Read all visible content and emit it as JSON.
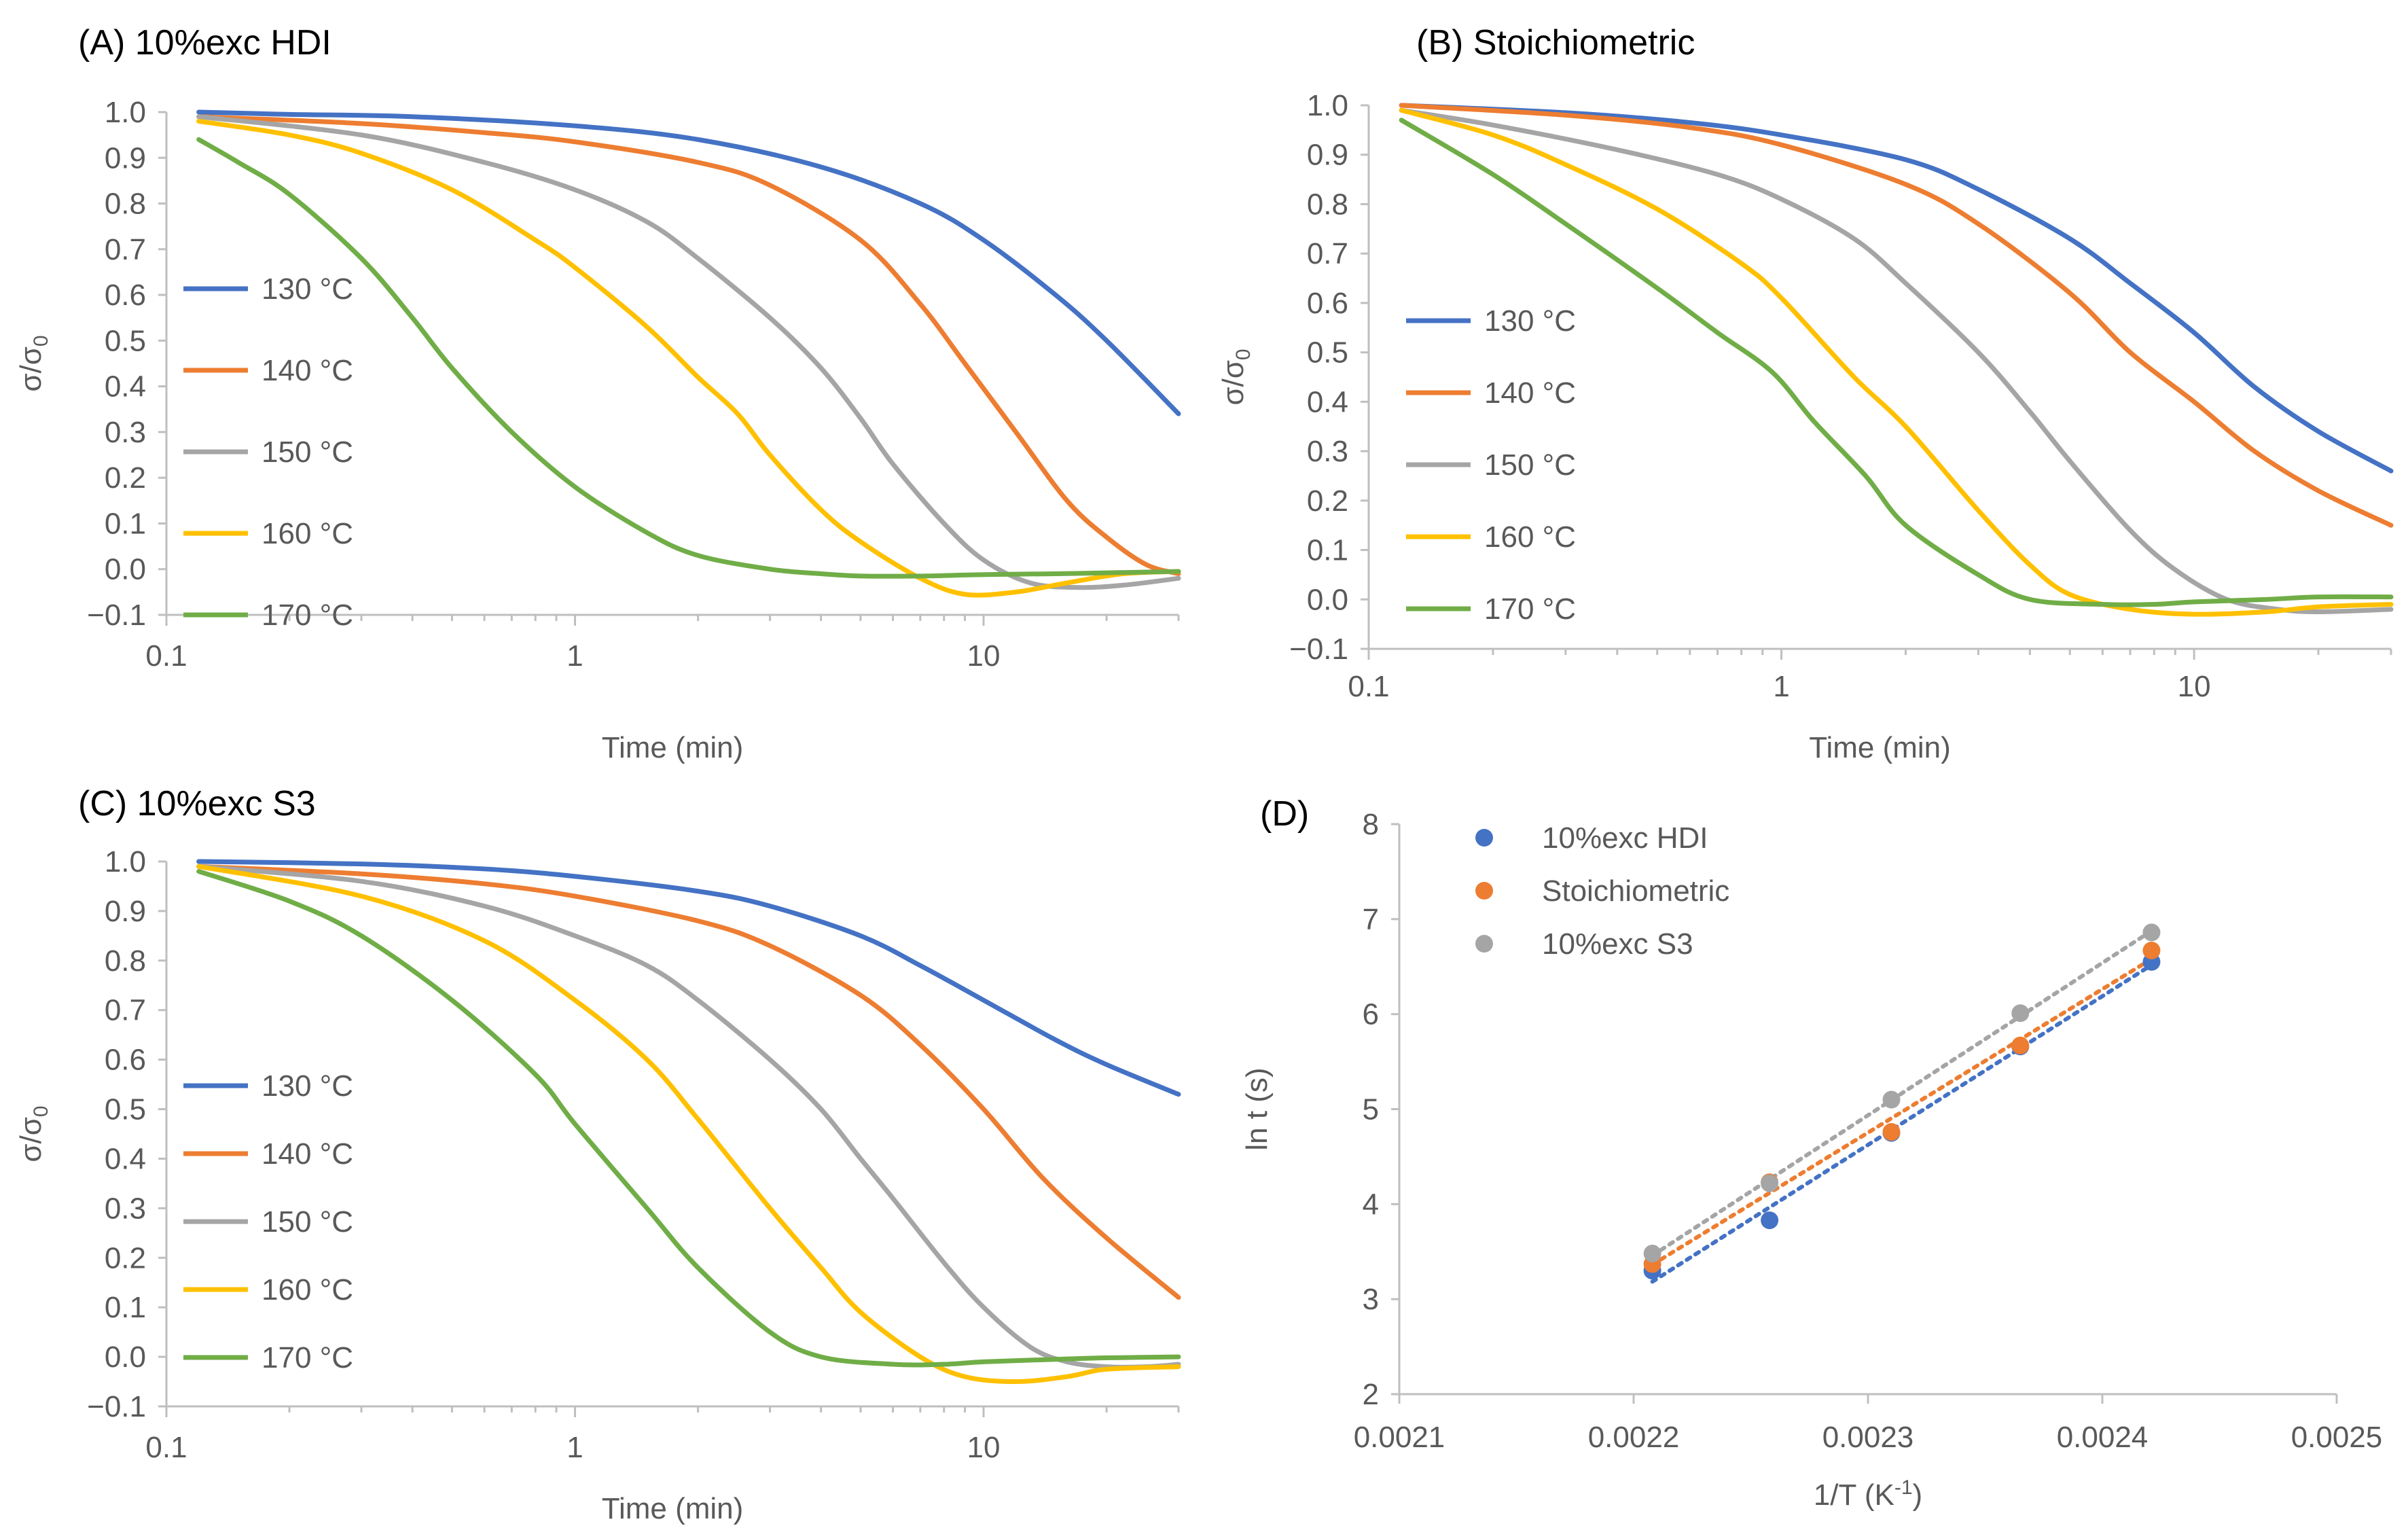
{
  "chart_data": [
    {
      "type": "line",
      "title": "(A) 10%exc HDI",
      "xlabel": "Time (min)",
      "ylabel_main": "σ/σ",
      "ylabel_sub": "0",
      "xscale": "log",
      "xlim": [
        0.1,
        30
      ],
      "ylim": [
        -0.1,
        1.0
      ],
      "xticks": [
        0.1,
        1,
        10
      ],
      "xtick_labels": [
        "0.1",
        "1",
        "10"
      ],
      "yticks": [
        -0.1,
        0.0,
        0.1,
        0.2,
        0.3,
        0.4,
        0.5,
        0.6,
        0.7,
        0.8,
        0.9,
        1.0
      ],
      "ytick_labels": [
        "−0.1",
        "0.0",
        "0.1",
        "0.2",
        "0.3",
        "0.4",
        "0.5",
        "0.6",
        "0.7",
        "0.8",
        "0.9",
        "1.0"
      ],
      "legend_position": "left",
      "series": [
        {
          "name": "130 °C",
          "color": "#4472C4",
          "x": [
            0.12,
            0.2,
            0.4,
            1,
            2,
            4,
            7,
            10,
            15,
            20,
            30
          ],
          "y": [
            1.0,
            0.995,
            0.99,
            0.97,
            0.94,
            0.88,
            0.8,
            0.72,
            0.6,
            0.5,
            0.34
          ]
        },
        {
          "name": "140 °C",
          "color": "#ED7D31",
          "x": [
            0.12,
            0.3,
            0.6,
            1,
            2,
            3,
            5,
            7,
            9,
            12,
            16,
            20,
            25,
            30
          ],
          "y": [
            0.99,
            0.975,
            0.955,
            0.935,
            0.89,
            0.84,
            0.72,
            0.58,
            0.45,
            0.3,
            0.15,
            0.07,
            0.01,
            -0.01
          ]
        },
        {
          "name": "150 °C",
          "color": "#A5A5A5",
          "x": [
            0.12,
            0.3,
            0.6,
            1,
            1.5,
            2,
            3,
            4,
            5,
            6,
            8,
            10,
            13,
            17,
            22,
            30
          ],
          "y": [
            0.99,
            0.95,
            0.89,
            0.83,
            0.76,
            0.68,
            0.55,
            0.44,
            0.33,
            0.23,
            0.1,
            0.02,
            -0.03,
            -0.04,
            -0.035,
            -0.02
          ]
        },
        {
          "name": "160 °C",
          "color": "#FFC000",
          "x": [
            0.12,
            0.2,
            0.3,
            0.5,
            0.8,
            1,
            1.5,
            2,
            2.5,
            3,
            4,
            5,
            7,
            9,
            12,
            16,
            22,
            30
          ],
          "y": [
            0.98,
            0.95,
            0.91,
            0.83,
            0.72,
            0.66,
            0.53,
            0.42,
            0.34,
            0.25,
            0.13,
            0.06,
            -0.02,
            -0.055,
            -0.05,
            -0.03,
            -0.01,
            -0.005
          ]
        },
        {
          "name": "170 °C",
          "color": "#70AD47",
          "x": [
            0.12,
            0.15,
            0.2,
            0.3,
            0.4,
            0.5,
            0.7,
            1,
            1.5,
            2,
            3,
            4,
            5,
            7,
            10,
            15,
            20,
            30
          ],
          "y": [
            0.94,
            0.89,
            0.82,
            0.68,
            0.55,
            0.44,
            0.3,
            0.18,
            0.08,
            0.03,
            0.0,
            -0.01,
            -0.015,
            -0.015,
            -0.012,
            -0.01,
            -0.008,
            -0.005
          ]
        }
      ]
    },
    {
      "type": "line",
      "title": "(B) Stoichiometric",
      "xlabel": "Time (min)",
      "ylabel_main": "σ/σ",
      "ylabel_sub": "0",
      "xscale": "log",
      "xlim": [
        0.1,
        30
      ],
      "ylim": [
        -0.1,
        1.0
      ],
      "xticks": [
        0.1,
        1,
        10
      ],
      "xtick_labels": [
        "0.1",
        "1",
        "10"
      ],
      "yticks": [
        -0.1,
        0.0,
        0.1,
        0.2,
        0.3,
        0.4,
        0.5,
        0.6,
        0.7,
        0.8,
        0.9,
        1.0
      ],
      "ytick_labels": [
        "−0.1",
        "0.0",
        "0.1",
        "0.2",
        "0.3",
        "0.4",
        "0.5",
        "0.6",
        "0.7",
        "0.8",
        "0.9",
        "1.0"
      ],
      "legend_position": "left",
      "series": [
        {
          "name": "130 °C",
          "color": "#4472C4",
          "x": [
            0.12,
            0.3,
            0.6,
            1,
            2,
            3,
            5,
            7,
            10,
            14,
            20,
            30
          ],
          "y": [
            1.0,
            0.985,
            0.965,
            0.94,
            0.89,
            0.83,
            0.73,
            0.64,
            0.54,
            0.43,
            0.34,
            0.26
          ]
        },
        {
          "name": "140 °C",
          "color": "#ED7D31",
          "x": [
            0.12,
            0.3,
            0.6,
            1,
            2,
            3,
            5,
            7,
            10,
            14,
            20,
            30
          ],
          "y": [
            1.0,
            0.98,
            0.955,
            0.92,
            0.84,
            0.76,
            0.62,
            0.5,
            0.4,
            0.3,
            0.22,
            0.15
          ]
        },
        {
          "name": "150 °C",
          "color": "#A5A5A5",
          "x": [
            0.12,
            0.2,
            0.4,
            0.7,
            1,
            1.5,
            2,
            3,
            4,
            5,
            7,
            9,
            12,
            16,
            20,
            30
          ],
          "y": [
            0.99,
            0.96,
            0.91,
            0.86,
            0.81,
            0.73,
            0.64,
            0.5,
            0.38,
            0.28,
            0.14,
            0.06,
            0.0,
            -0.02,
            -0.025,
            -0.02
          ]
        },
        {
          "name": "160 °C",
          "color": "#FFC000",
          "x": [
            0.12,
            0.2,
            0.3,
            0.5,
            0.8,
            1,
            1.5,
            2,
            3,
            4,
            5,
            7,
            10,
            15,
            20,
            30
          ],
          "y": [
            0.99,
            0.94,
            0.88,
            0.79,
            0.68,
            0.61,
            0.45,
            0.35,
            0.18,
            0.07,
            0.01,
            -0.02,
            -0.03,
            -0.025,
            -0.015,
            -0.01
          ]
        },
        {
          "name": "170 °C",
          "color": "#70AD47",
          "x": [
            0.12,
            0.2,
            0.3,
            0.5,
            0.7,
            0.95,
            1.2,
            1.6,
            2,
            3,
            4,
            6,
            8,
            10,
            15,
            20,
            30
          ],
          "y": [
            0.97,
            0.86,
            0.76,
            0.63,
            0.54,
            0.46,
            0.36,
            0.25,
            0.15,
            0.05,
            0.0,
            -0.01,
            -0.01,
            -0.005,
            0.0,
            0.005,
            0.005
          ]
        }
      ]
    },
    {
      "type": "line",
      "title": "(C) 10%exc S3",
      "xlabel": "Time (min)",
      "ylabel_main": "σ/σ",
      "ylabel_sub": "0",
      "xscale": "log",
      "xlim": [
        0.1,
        30
      ],
      "ylim": [
        -0.1,
        1.0
      ],
      "xticks": [
        0.1,
        1,
        10
      ],
      "xtick_labels": [
        "0.1",
        "1",
        "10"
      ],
      "yticks": [
        -0.1,
        0.0,
        0.1,
        0.2,
        0.3,
        0.4,
        0.5,
        0.6,
        0.7,
        0.8,
        0.9,
        1.0
      ],
      "ytick_labels": [
        "−0.1",
        "0.0",
        "0.1",
        "0.2",
        "0.3",
        "0.4",
        "0.5",
        "0.6",
        "0.7",
        "0.8",
        "0.9",
        "1.0"
      ],
      "legend_position": "left",
      "series": [
        {
          "name": "130 °C",
          "color": "#4472C4",
          "x": [
            0.12,
            0.3,
            0.6,
            1,
            2,
            3,
            5,
            7,
            10,
            15,
            20,
            30
          ],
          "y": [
            1.0,
            0.995,
            0.985,
            0.97,
            0.94,
            0.91,
            0.85,
            0.79,
            0.72,
            0.64,
            0.59,
            0.53
          ]
        },
        {
          "name": "140 °C",
          "color": "#ED7D31",
          "x": [
            0.12,
            0.3,
            0.6,
            1,
            2,
            3,
            5,
            7,
            10,
            14,
            20,
            30
          ],
          "y": [
            0.99,
            0.975,
            0.955,
            0.93,
            0.88,
            0.83,
            0.73,
            0.63,
            0.5,
            0.36,
            0.24,
            0.12
          ]
        },
        {
          "name": "150 °C",
          "color": "#A5A5A5",
          "x": [
            0.12,
            0.3,
            0.6,
            1,
            1.5,
            2,
            3,
            4,
            5,
            6,
            8,
            10,
            13,
            16,
            20,
            25,
            30
          ],
          "y": [
            0.99,
            0.96,
            0.91,
            0.85,
            0.79,
            0.72,
            0.6,
            0.5,
            0.4,
            0.32,
            0.19,
            0.1,
            0.02,
            -0.01,
            -0.02,
            -0.02,
            -0.015
          ]
        },
        {
          "name": "160 °C",
          "color": "#FFC000",
          "x": [
            0.12,
            0.3,
            0.6,
            1,
            1.5,
            2,
            3,
            4,
            5,
            7,
            9,
            12,
            16,
            20,
            30
          ],
          "y": [
            0.99,
            0.93,
            0.84,
            0.72,
            0.6,
            0.48,
            0.3,
            0.18,
            0.09,
            0.0,
            -0.04,
            -0.05,
            -0.04,
            -0.025,
            -0.02
          ]
        },
        {
          "name": "170 °C",
          "color": "#70AD47",
          "x": [
            0.12,
            0.2,
            0.3,
            0.5,
            0.8,
            1,
            1.5,
            2,
            3,
            4,
            6,
            8,
            10,
            15,
            20,
            30
          ],
          "y": [
            0.98,
            0.92,
            0.85,
            0.72,
            0.57,
            0.47,
            0.3,
            0.18,
            0.05,
            0.0,
            -0.015,
            -0.015,
            -0.01,
            -0.005,
            -0.002,
            0.0
          ]
        }
      ]
    },
    {
      "type": "scatter",
      "title": "(D)",
      "xlabel_main": "1/T (K",
      "xlabel_sup": "-1",
      "xlabel_end": ")",
      "ylabel": "ln t (s)",
      "xlim": [
        0.0021,
        0.0025
      ],
      "ylim": [
        2,
        8
      ],
      "xticks": [
        0.0021,
        0.0022,
        0.0023,
        0.0024,
        0.0025
      ],
      "xtick_labels": [
        "0.0021",
        "0.0022",
        "0.0023",
        "0.0024",
        "0.0025"
      ],
      "yticks": [
        2,
        3,
        4,
        5,
        6,
        7,
        8
      ],
      "ytick_labels": [
        "2",
        "3",
        "4",
        "5",
        "6",
        "7",
        "8"
      ],
      "legend_position": "top-left",
      "series": [
        {
          "name": "10%exc HDI",
          "color": "#4472C4",
          "x": [
            0.002208,
            0.002258,
            0.00231,
            0.002365,
            0.002421
          ],
          "y": [
            3.3,
            3.83,
            4.75,
            5.66,
            6.55
          ],
          "trendline": true
        },
        {
          "name": "Stoichiometric",
          "color": "#ED7D31",
          "x": [
            0.002208,
            0.002258,
            0.00231,
            0.002365,
            0.002421
          ],
          "y": [
            3.37,
            4.23,
            4.76,
            5.67,
            6.67
          ],
          "trendline": true
        },
        {
          "name": "10%exc S3",
          "color": "#A5A5A5",
          "x": [
            0.002208,
            0.002258,
            0.00231,
            0.002365,
            0.002421
          ],
          "y": [
            3.48,
            4.22,
            5.1,
            6.01,
            6.86
          ],
          "trendline": true
        }
      ]
    }
  ]
}
